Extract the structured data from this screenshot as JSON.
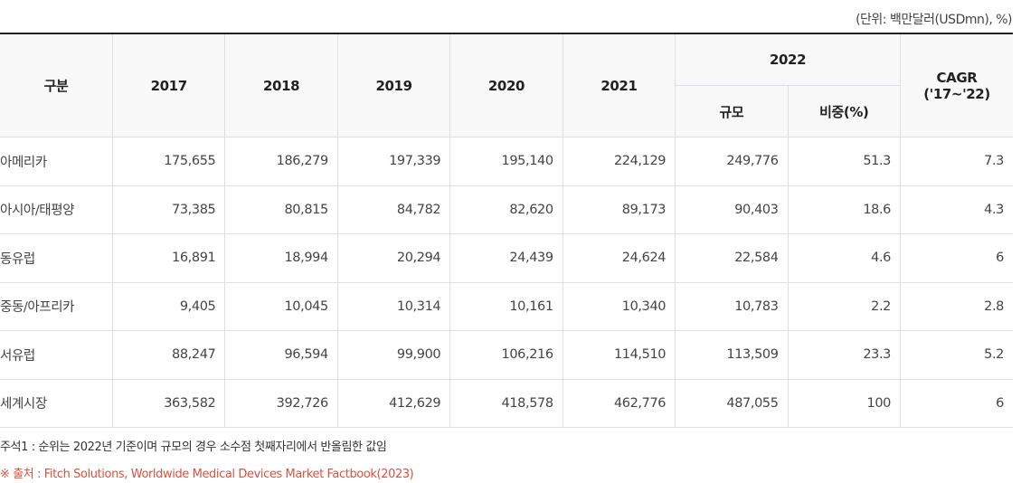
{
  "unit": "(단위: 백만달러(USDmn), %)",
  "headers": {
    "category": "구분",
    "y2017": "2017",
    "y2018": "2018",
    "y2019": "2019",
    "y2020": "2020",
    "y2021": "2021",
    "y2022": "2022",
    "size": "규모",
    "share": "비중(%)",
    "cagr": "CAGR",
    "cagr_period": "('17~'22)"
  },
  "rows": [
    [
      "아메리카",
      "175,655",
      "186,279",
      "197,339",
      "195,140",
      "224,129",
      "249,776",
      "51.3",
      "7.3"
    ],
    [
      "아시아/태평양",
      "73,385",
      "80,815",
      "84,782",
      "82,620",
      "89,173",
      "90,403",
      "18.6",
      "4.3"
    ],
    [
      "동유럽",
      "16,891",
      "18,994",
      "20,294",
      "24,439",
      "24,624",
      "22,584",
      "4.6",
      "6"
    ],
    [
      "중동/아프리카",
      "9,405",
      "10,045",
      "10,314",
      "10,161",
      "10,340",
      "10,783",
      "2.2",
      "2.8"
    ],
    [
      "서유럽",
      "88,247",
      "96,594",
      "99,900",
      "106,216",
      "114,510",
      "113,509",
      "23.3",
      "5.2"
    ],
    [
      "세계시장",
      "363,582",
      "392,726",
      "412,629",
      "418,578",
      "462,776",
      "487,055",
      "100",
      "6"
    ]
  ],
  "note": "주석1 : 순위는 2022년 기준이며 규모의 경우 소수점 첫째자리에서 반올림한 값임",
  "source": "※ 출처 : Fitch Solutions, Worldwide Medical Devices Market Factbook(2023)",
  "colors": {
    "source": "#d9533f",
    "header_bg": "#f8f8f8",
    "border": "#dcdfe5"
  }
}
